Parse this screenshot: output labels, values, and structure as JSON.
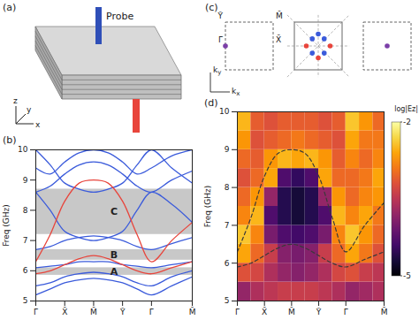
{
  "panels": {
    "a": {
      "label": "(a)",
      "probe": "Probe",
      "axes": [
        "x",
        "y",
        "z"
      ]
    },
    "c": {
      "label": "(c)",
      "axis_labels": [
        "kx",
        "ky"
      ],
      "zones": [
        {
          "line_style": "dashed",
          "dots": [
            {
              "k": [
                -1,
                0
              ],
              "color": "#7b3fa8"
            }
          ],
          "labels": [
            {
              "text": "Γ̄",
              "k": [
                -1,
                0
              ]
            },
            {
              "text": "Ȳ",
              "k": [
                -1,
                1
              ]
            },
            {
              "text": "M̄",
              "k": [
                1,
                1
              ]
            },
            {
              "text": "X̄",
              "k": [
                1,
                0
              ]
            }
          ]
        },
        {
          "line_style": "solid",
          "dots": [
            {
              "k": [
                -0.5,
                0
              ],
              "color": "#e8453c"
            },
            {
              "k": [
                0.5,
                0
              ],
              "color": "#e8453c"
            },
            {
              "k": [
                0,
                -0.5
              ],
              "color": "#e8453c"
            },
            {
              "k": [
                0,
                0.5
              ],
              "color": "#3b5bdb"
            },
            {
              "k": [
                -0.25,
                0.3
              ],
              "color": "#3b5bdb"
            },
            {
              "k": [
                0.25,
                0.3
              ],
              "color": "#3b5bdb"
            },
            {
              "k": [
                -0.25,
                -0.3
              ],
              "color": "#3b5bdb"
            },
            {
              "k": [
                0.25,
                -0.3
              ],
              "color": "#3b5bdb"
            }
          ],
          "labels": []
        },
        {
          "line_style": "dashed",
          "dots": [
            {
              "k": [
                0,
                0
              ],
              "color": "#7b3fa8"
            }
          ],
          "labels": []
        }
      ]
    }
  },
  "chart_data": [
    {
      "type": "line",
      "label": "(b)",
      "y_label": "Freq (GHz)",
      "x": [
        0,
        0.5,
        1,
        1.5,
        2,
        2.5,
        3,
        3.5,
        4,
        4.7,
        5.41
      ],
      "xlim": [
        0,
        5.41
      ],
      "xticks": [
        {
          "value": 0,
          "label": "Γ̄"
        },
        {
          "value": 1,
          "label": "X̄"
        },
        {
          "value": 2,
          "label": "M̄"
        },
        {
          "value": 3,
          "label": "Ȳ"
        },
        {
          "value": 4,
          "label": "Γ̄"
        },
        {
          "value": 5.41,
          "label": "M̄"
        }
      ],
      "ylim": [
        5,
        10
      ],
      "yticks": [
        5,
        6,
        7,
        8,
        9,
        10
      ],
      "bands": [
        {
          "name": "A",
          "range": [
            5.85,
            6.1
          ],
          "color": "#9a9a9a"
        },
        {
          "name": "B",
          "range": [
            6.35,
            6.7
          ],
          "color": "#9a9a9a"
        },
        {
          "name": "C",
          "range": [
            7.2,
            8.7
          ],
          "color": "#9a9a9a"
        }
      ],
      "series": [
        {
          "color": "#3b5bdb",
          "values": [
            5.2,
            5.4,
            5.6,
            5.7,
            5.75,
            5.7,
            5.6,
            5.4,
            5.2,
            5.5,
            5.8
          ]
        },
        {
          "color": "#3b5bdb",
          "values": [
            5.5,
            5.6,
            5.8,
            5.9,
            5.95,
            5.9,
            5.8,
            5.6,
            5.5,
            5.8,
            6.0
          ]
        },
        {
          "color": "#3b5bdb",
          "values": [
            6.1,
            6.15,
            6.2,
            6.3,
            6.3,
            6.3,
            6.2,
            6.15,
            6.1,
            6.2,
            6.3
          ]
        },
        {
          "color": "#3b5bdb",
          "values": [
            6.7,
            6.8,
            7.0,
            7.1,
            7.15,
            7.1,
            7.0,
            6.8,
            6.7,
            6.9,
            7.1
          ]
        },
        {
          "color": "#3b5bdb",
          "values": [
            8.6,
            8.0,
            7.3,
            7.1,
            7.0,
            7.1,
            7.3,
            8.0,
            8.6,
            8.2,
            7.6
          ]
        },
        {
          "color": "#3b5bdb",
          "values": [
            8.6,
            8.8,
            9.2,
            9.5,
            9.6,
            9.5,
            9.2,
            8.8,
            8.6,
            9.0,
            9.3
          ]
        },
        {
          "color": "#3b5bdb",
          "values": [
            9.4,
            9.2,
            9.6,
            9.9,
            10,
            9.9,
            9.6,
            9.2,
            9.4,
            9.8,
            10
          ]
        },
        {
          "color": "#3b5bdb",
          "values": [
            10,
            9.5,
            8.9,
            8.7,
            8.6,
            8.7,
            8.9,
            9.5,
            10,
            9.4,
            8.9
          ]
        },
        {
          "color": "#e8453c",
          "values": [
            6.3,
            7.2,
            8.3,
            8.9,
            9.0,
            8.9,
            8.3,
            7.2,
            6.3,
            7.0,
            7.6
          ]
        },
        {
          "color": "#e8453c",
          "values": [
            5.9,
            6.0,
            6.2,
            6.4,
            6.5,
            6.4,
            6.2,
            6.0,
            5.9,
            6.1,
            6.3
          ]
        }
      ]
    },
    {
      "type": "heatmap",
      "label": "(d)",
      "y_label": "Freq (GHz)",
      "xlim": [
        0,
        5.41
      ],
      "xticks": [
        {
          "value": 0,
          "label": "Γ̄"
        },
        {
          "value": 1,
          "label": "X̄"
        },
        {
          "value": 2,
          "label": "M̄"
        },
        {
          "value": 3,
          "label": "Ȳ"
        },
        {
          "value": 4,
          "label": "Γ̄"
        },
        {
          "value": 5.41,
          "label": "M̄"
        }
      ],
      "ylim": [
        5,
        10
      ],
      "yticks": [
        5,
        6,
        7,
        8,
        9,
        10
      ],
      "x_edges": [
        0,
        0.5,
        1,
        1.5,
        2,
        2.5,
        3,
        3.5,
        4,
        4.5,
        5,
        5.41
      ],
      "y_edges": [
        5,
        5.5,
        6,
        6.5,
        7,
        7.5,
        8,
        8.5,
        9,
        9.5,
        10
      ],
      "z": [
        [
          -3.8,
          -3.6,
          -3.5,
          -3.4,
          -3.4,
          -3.4,
          -3.5,
          -3.6,
          -3.8,
          -3.7,
          -3.6
        ],
        [
          -3.2,
          -3.3,
          -3.6,
          -3.8,
          -3.9,
          -3.8,
          -3.6,
          -3.3,
          -3.2,
          -3.4,
          -3.5
        ],
        [
          -2.6,
          -3.0,
          -3.4,
          -3.9,
          -4.0,
          -3.9,
          -3.4,
          -3.0,
          -2.6,
          -2.9,
          -3.2
        ],
        [
          -2.4,
          -2.8,
          -4.0,
          -4.3,
          -4.4,
          -4.3,
          -4.0,
          -2.8,
          -2.4,
          -2.7,
          -3.0
        ],
        [
          -2.8,
          -2.5,
          -4.3,
          -4.6,
          -4.7,
          -4.6,
          -4.3,
          -2.5,
          -2.8,
          -2.6,
          -2.9
        ],
        [
          -3.0,
          -2.7,
          -3.8,
          -4.6,
          -4.7,
          -4.6,
          -3.8,
          -2.7,
          -3.0,
          -2.8,
          -2.7
        ],
        [
          -3.2,
          -3.0,
          -2.6,
          -4.3,
          -4.5,
          -4.3,
          -2.6,
          -3.0,
          -3.0,
          -2.9,
          -2.6
        ],
        [
          -3.0,
          -3.1,
          -2.7,
          -2.5,
          -2.6,
          -2.5,
          -2.7,
          -3.1,
          -2.8,
          -3.0,
          -2.8
        ],
        [
          -2.7,
          -3.2,
          -3.1,
          -3.0,
          -2.9,
          -3.0,
          -3.1,
          -3.2,
          -2.6,
          -2.9,
          -2.9
        ],
        [
          -2.5,
          -3.1,
          -3.2,
          -3.1,
          -3.1,
          -3.1,
          -3.2,
          -3.1,
          -2.4,
          -2.7,
          -3.0
        ]
      ],
      "colorbar": {
        "label": "log|Ez|",
        "range": [
          -5,
          -2
        ],
        "ticks": [
          -2,
          -5
        ]
      },
      "x": [
        0,
        0.5,
        1,
        1.5,
        2,
        2.5,
        3,
        3.5,
        4,
        4.7,
        5.41
      ],
      "series": [
        {
          "color": "#3a3a3a",
          "line_style": "dashed",
          "values": [
            6.3,
            7.2,
            8.3,
            8.9,
            9.0,
            8.9,
            8.3,
            7.2,
            6.3,
            7.0,
            7.6
          ]
        },
        {
          "color": "#3a3a3a",
          "line_style": "dashed",
          "values": [
            5.9,
            6.0,
            6.2,
            6.4,
            6.5,
            6.4,
            6.2,
            6.0,
            5.9,
            6.1,
            6.3
          ]
        }
      ]
    }
  ]
}
